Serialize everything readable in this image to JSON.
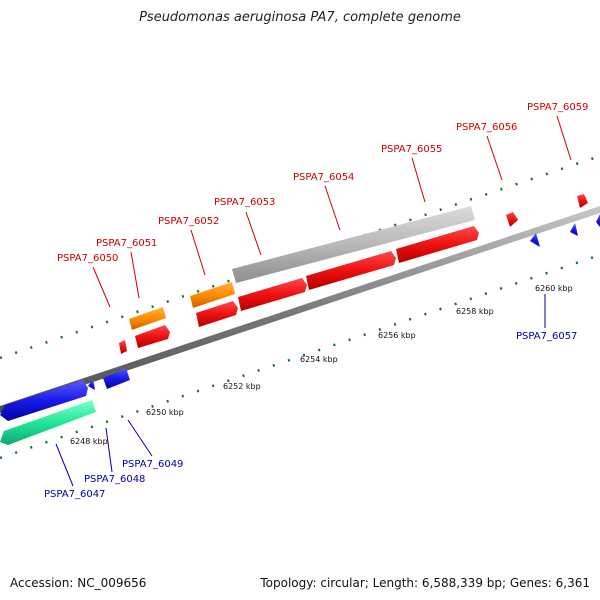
{
  "title": "Pseudomonas aeruginosa PA7, complete genome",
  "footer": {
    "accession": "Accession: NC_009656",
    "summary": "Topology: circular; Length: 6,588,339 bp; Genes: 6,361"
  },
  "colors": {
    "forward_label": "#cc0000",
    "reverse_label": "#0000aa",
    "red": "#ee1111",
    "orange": "#ff8c00",
    "gray": "#b4b4b4",
    "blue": "#1a1ae6",
    "teal": "#22e69a",
    "tick": "#117711",
    "backbone": "#7a7a7a"
  },
  "scale_labels": [
    "6248 kbp",
    "6250 kbp",
    "6252 kbp",
    "6254 kbp",
    "6256 kbp",
    "6258 kbp",
    "6260 kbp"
  ],
  "forward_genes": [
    "PSPA7_6050",
    "PSPA7_6051",
    "PSPA7_6052",
    "PSPA7_6053",
    "PSPA7_6054",
    "PSPA7_6055",
    "PSPA7_6056",
    "PSPA7_6059"
  ],
  "reverse_genes": [
    "PSPA7_6047",
    "PSPA7_6048",
    "PSPA7_6049",
    "PSPA7_6057"
  ]
}
